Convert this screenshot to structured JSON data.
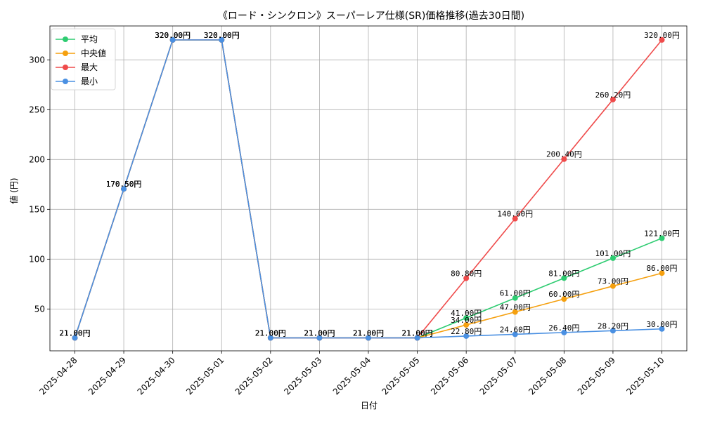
{
  "chart_data": {
    "type": "line",
    "title": "《ロード・シンクロン》スーパーレア仕様(SR)価格推移(過去30日間)",
    "xlabel": "日付",
    "ylabel": "値 (円)",
    "ylim": [
      8,
      334
    ],
    "yticks": [
      50,
      100,
      150,
      200,
      250,
      300
    ],
    "grid": true,
    "legend_position": "top-left",
    "categories": [
      "2025-04-28",
      "2025-04-29",
      "2025-04-30",
      "2025-05-01",
      "2025-05-02",
      "2025-05-03",
      "2025-05-04",
      "2025-05-05",
      "2025-05-06",
      "2025-05-07",
      "2025-05-08",
      "2025-05-09",
      "2025-05-10"
    ],
    "series": [
      {
        "name": "平均",
        "color": "#2ecc71",
        "values": [
          21.0,
          170.5,
          320.0,
          320.0,
          21.0,
          21.0,
          21.0,
          21.0,
          41.0,
          61.0,
          81.0,
          101.0,
          121.0
        ]
      },
      {
        "name": "中央値",
        "color": "#f5a00f",
        "values": [
          21.0,
          170.5,
          320.0,
          320.0,
          21.0,
          21.0,
          21.0,
          21.0,
          34.0,
          47.0,
          60.0,
          73.0,
          86.0
        ]
      },
      {
        "name": "最大",
        "color": "#ef4b4b",
        "values": [
          21.0,
          170.5,
          320.0,
          320.0,
          21.0,
          21.0,
          21.0,
          21.0,
          80.8,
          140.6,
          200.4,
          260.2,
          320.0
        ]
      },
      {
        "name": "最小",
        "color": "#4a90e2",
        "values": [
          21.0,
          170.5,
          320.0,
          320.0,
          21.0,
          21.0,
          21.0,
          21.0,
          22.8,
          24.6,
          26.4,
          28.2,
          30.0
        ]
      }
    ],
    "value_suffix": "円"
  }
}
